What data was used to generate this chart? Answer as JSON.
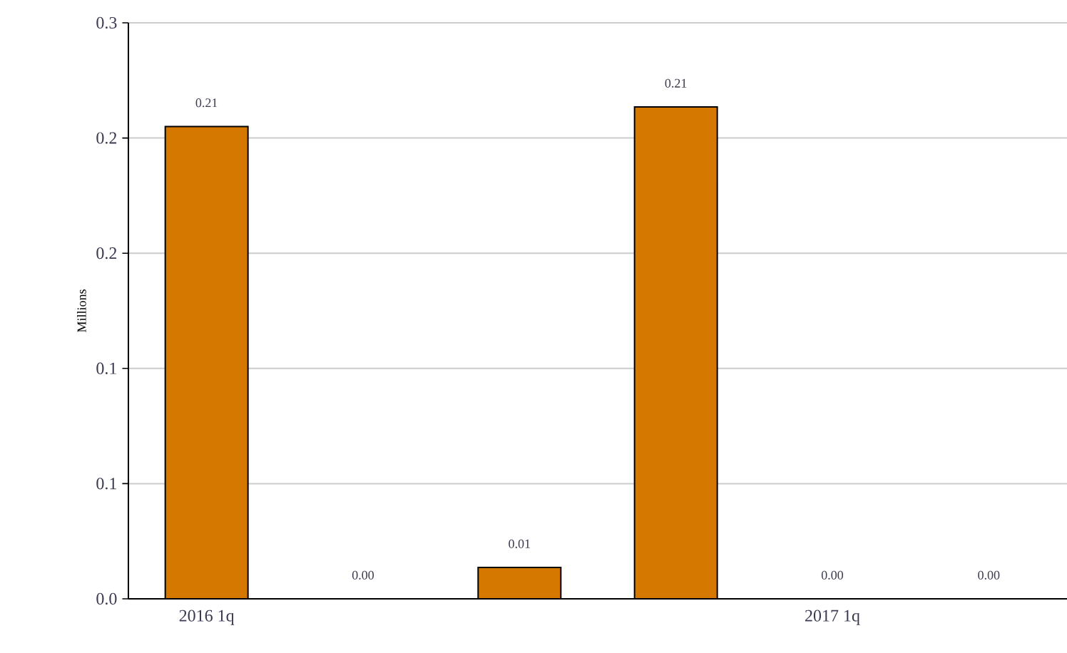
{
  "chart_data": {
    "type": "bar",
    "ylabel": "Millions",
    "categories": [
      "2016 1q",
      null,
      null,
      null,
      "2017 1q",
      null
    ],
    "values": [
      0.205,
      0,
      0.0136,
      0.2135,
      0,
      0
    ],
    "value_labels": [
      "0.21",
      "0.00",
      "0.01",
      "0.21",
      "0.00",
      "0.00"
    ],
    "color": "#d47800",
    "ylim": [
      0,
      0.25
    ],
    "yticks": [
      {
        "value": 0,
        "label": "0.0"
      },
      {
        "value": 0.05,
        "label": "0.1"
      },
      {
        "value": 0.1,
        "label": "0.1"
      },
      {
        "value": 0.15,
        "label": "0.2"
      },
      {
        "value": 0.2,
        "label": "0.2"
      },
      {
        "value": 0.25,
        "label": "0.3"
      }
    ],
    "grid": "y"
  }
}
